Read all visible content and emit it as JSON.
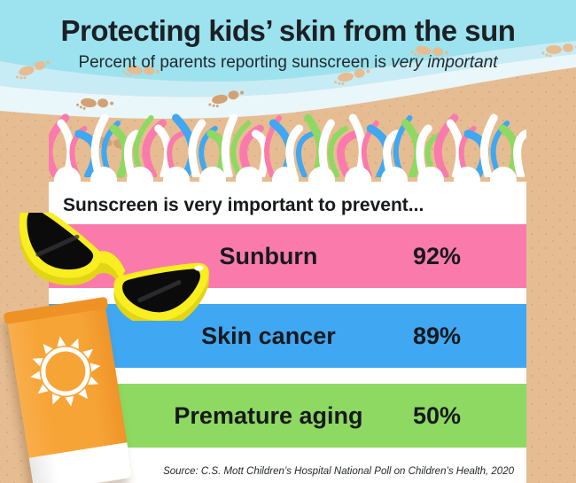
{
  "header": {
    "title": "Protecting kids’ skin from the sun",
    "subtitle_prefix": "Percent of parents reporting sunscreen is ",
    "subtitle_emphasis": "very important"
  },
  "towel": {
    "heading": "Sunscreen is very important to prevent..."
  },
  "rows": [
    {
      "label": "Sunburn",
      "value_label": "92%",
      "color": "#fa7bab"
    },
    {
      "label": "Skin cancer",
      "value_label": "89%",
      "color": "#40a7f2"
    },
    {
      "label": "Premature aging",
      "value_label": "50%",
      "color": "#8dd962"
    }
  ],
  "source": "Source: C.S. Mott Children’s Hospital National Poll on Children’s Health, 2020",
  "chart_data": {
    "type": "bar",
    "title": "Protecting kids’ skin from the sun",
    "subtitle": "Percent of parents reporting sunscreen is very important",
    "heading": "Sunscreen is very important to prevent...",
    "categories": [
      "Sunburn",
      "Skin cancer",
      "Premature aging"
    ],
    "values": [
      92,
      89,
      50
    ],
    "unit": "percent",
    "value_labels": [
      "92%",
      "89%",
      "50%"
    ],
    "bar_colors": [
      "#fa7bab",
      "#40a7f2",
      "#8dd962"
    ],
    "orientation": "horizontal-stacked-rows",
    "source": "Source: C.S. Mott Children’s Hospital National Poll on Children’s Health, 2020"
  },
  "palette": {
    "sky": "#9ce3ef",
    "wave_mid": "#c7ecf5",
    "wave_light": "#e9f7fb",
    "sand": "#e6bd92",
    "sand_print_dark": "#d2a273",
    "towel_white": "#ffffff",
    "pink": "#fa7bab",
    "blue": "#40a7f2",
    "green": "#8dd962",
    "tassel_cycle": [
      "#fa7bab",
      "#ffffff",
      "#fa7bab",
      "#40a7f2",
      "#ffffff",
      "#40a7f2",
      "#8dd962",
      "#ffffff",
      "#8dd962"
    ],
    "sunglasses_yellow": "#f8ee20",
    "sunglasses_yellow_shadow": "#e2d416",
    "lens_black": "#0b0b0b",
    "tube_orange": "#f7a437",
    "tube_crimp": "#ee9226",
    "text_dark": "#1c2024"
  }
}
